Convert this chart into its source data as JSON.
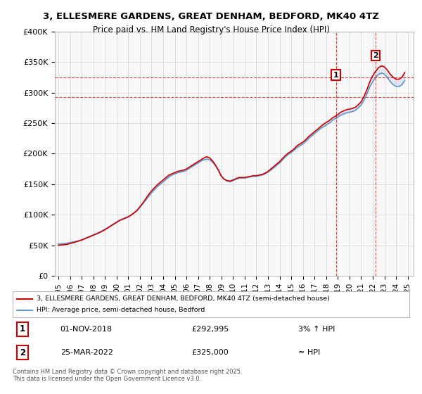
{
  "title": "3, ELLESMERE GARDENS, GREAT DENHAM, BEDFORD, MK40 4TZ",
  "subtitle": "Price paid vs. HM Land Registry's House Price Index (HPI)",
  "ylabel_ticks": [
    "£0",
    "£50K",
    "£100K",
    "£150K",
    "£200K",
    "£250K",
    "£300K",
    "£350K",
    "£400K"
  ],
  "ylim": [
    0,
    400000
  ],
  "xlim_start": 1995,
  "xlim_end": 2025.5,
  "legend_line1": "3, ELLESMERE GARDENS, GREAT DENHAM, BEDFORD, MK40 4TZ (semi-detached house)",
  "legend_line2": "HPI: Average price, semi-detached house, Bedford",
  "annotation1_num": "1",
  "annotation1_date": "01-NOV-2018",
  "annotation1_price": "£292,995",
  "annotation1_hpi": "3% ↑ HPI",
  "annotation2_num": "2",
  "annotation2_date": "25-MAR-2022",
  "annotation2_price": "£325,000",
  "annotation2_hpi": "≈ HPI",
  "footer": "Contains HM Land Registry data © Crown copyright and database right 2025.\nThis data is licensed under the Open Government Licence v3.0.",
  "line_color_red": "#cc0000",
  "line_color_blue": "#6699cc",
  "marker1_x": 2018.83,
  "marker1_y": 292995,
  "marker2_x": 2022.23,
  "marker2_y": 325000,
  "hpi_data_x": [
    1995,
    1995.25,
    1995.5,
    1995.75,
    1996,
    1996.25,
    1996.5,
    1996.75,
    1997,
    1997.25,
    1997.5,
    1997.75,
    1998,
    1998.25,
    1998.5,
    1998.75,
    1999,
    1999.25,
    1999.5,
    1999.75,
    2000,
    2000.25,
    2000.5,
    2000.75,
    2001,
    2001.25,
    2001.5,
    2001.75,
    2002,
    2002.25,
    2002.5,
    2002.75,
    2003,
    2003.25,
    2003.5,
    2003.75,
    2004,
    2004.25,
    2004.5,
    2004.75,
    2005,
    2005.25,
    2005.5,
    2005.75,
    2006,
    2006.25,
    2006.5,
    2006.75,
    2007,
    2007.25,
    2007.5,
    2007.75,
    2008,
    2008.25,
    2008.5,
    2008.75,
    2009,
    2009.25,
    2009.5,
    2009.75,
    2010,
    2010.25,
    2010.5,
    2010.75,
    2011,
    2011.25,
    2011.5,
    2011.75,
    2012,
    2012.25,
    2012.5,
    2012.75,
    2013,
    2013.25,
    2013.5,
    2013.75,
    2014,
    2014.25,
    2014.5,
    2014.75,
    2015,
    2015.25,
    2015.5,
    2015.75,
    2016,
    2016.25,
    2016.5,
    2016.75,
    2017,
    2017.25,
    2017.5,
    2017.75,
    2018,
    2018.25,
    2018.5,
    2018.75,
    2019,
    2019.25,
    2019.5,
    2019.75,
    2020,
    2020.25,
    2020.5,
    2020.75,
    2021,
    2021.25,
    2021.5,
    2021.75,
    2022,
    2022.25,
    2022.5,
    2022.75,
    2023,
    2023.25,
    2023.5,
    2023.75,
    2024,
    2024.25,
    2024.5,
    2024.75
  ],
  "hpi_data_y": [
    52000,
    52500,
    53000,
    53500,
    54500,
    55500,
    56500,
    57500,
    59000,
    61000,
    63000,
    65000,
    67000,
    69000,
    71000,
    73500,
    76000,
    79000,
    82000,
    85000,
    88000,
    91000,
    93000,
    95000,
    97000,
    100000,
    103000,
    107000,
    112000,
    118000,
    124000,
    130000,
    136000,
    141000,
    146000,
    150000,
    154000,
    158000,
    162000,
    165000,
    167000,
    169000,
    170000,
    171000,
    173000,
    176000,
    179000,
    182000,
    185000,
    188000,
    190000,
    191000,
    190000,
    186000,
    180000,
    172000,
    163000,
    158000,
    155000,
    154000,
    156000,
    158000,
    160000,
    160000,
    160000,
    161000,
    162000,
    163000,
    163000,
    164000,
    165000,
    167000,
    170000,
    173000,
    177000,
    181000,
    185000,
    190000,
    195000,
    199000,
    202000,
    206000,
    210000,
    213000,
    216000,
    220000,
    225000,
    229000,
    233000,
    237000,
    241000,
    244000,
    247000,
    250000,
    254000,
    257000,
    260000,
    263000,
    265000,
    267000,
    268000,
    269000,
    271000,
    275000,
    280000,
    288000,
    298000,
    310000,
    318000,
    325000,
    330000,
    332000,
    330000,
    325000,
    318000,
    313000,
    310000,
    310000,
    313000,
    320000
  ],
  "price_data_x": [
    1995,
    1995.25,
    1995.5,
    1995.75,
    1996,
    1996.25,
    1996.5,
    1996.75,
    1997,
    1997.25,
    1997.5,
    1997.75,
    1998,
    1998.25,
    1998.5,
    1998.75,
    1999,
    1999.25,
    1999.5,
    1999.75,
    2000,
    2000.25,
    2000.5,
    2000.75,
    2001,
    2001.25,
    2001.5,
    2001.75,
    2002,
    2002.25,
    2002.5,
    2002.75,
    2003,
    2003.25,
    2003.5,
    2003.75,
    2004,
    2004.25,
    2004.5,
    2004.75,
    2005,
    2005.25,
    2005.5,
    2005.75,
    2006,
    2006.25,
    2006.5,
    2006.75,
    2007,
    2007.25,
    2007.5,
    2007.75,
    2008,
    2008.25,
    2008.5,
    2008.75,
    2009,
    2009.25,
    2009.5,
    2009.75,
    2010,
    2010.25,
    2010.5,
    2010.75,
    2011,
    2011.25,
    2011.5,
    2011.75,
    2012,
    2012.25,
    2012.5,
    2012.75,
    2013,
    2013.25,
    2013.5,
    2013.75,
    2014,
    2014.25,
    2014.5,
    2014.75,
    2015,
    2015.25,
    2015.5,
    2015.75,
    2016,
    2016.25,
    2016.5,
    2016.75,
    2017,
    2017.25,
    2017.5,
    2017.75,
    2018,
    2018.25,
    2018.5,
    2018.75,
    2019,
    2019.25,
    2019.5,
    2019.75,
    2020,
    2020.25,
    2020.5,
    2020.75,
    2021,
    2021.25,
    2021.5,
    2021.75,
    2022,
    2022.25,
    2022.5,
    2022.75,
    2023,
    2023.25,
    2023.5,
    2023.75,
    2024,
    2024.25,
    2024.5,
    2024.75
  ],
  "price_data_y": [
    50000,
    50500,
    51000,
    51500,
    53000,
    54000,
    55500,
    57000,
    58500,
    60500,
    62500,
    64500,
    66500,
    68500,
    70500,
    73000,
    75500,
    78500,
    81500,
    84500,
    87500,
    90500,
    92500,
    94500,
    96500,
    99500,
    103000,
    107000,
    113000,
    119000,
    126000,
    133000,
    139000,
    144000,
    149000,
    153000,
    157000,
    161000,
    165000,
    167000,
    169000,
    171000,
    172000,
    173000,
    175000,
    178000,
    181000,
    184000,
    187000,
    190000,
    193000,
    195000,
    193000,
    188000,
    181000,
    173000,
    163000,
    158000,
    156000,
    155000,
    157000,
    159000,
    161000,
    161000,
    161000,
    162000,
    163000,
    164000,
    164000,
    165000,
    166000,
    168000,
    171000,
    175000,
    179000,
    183000,
    187000,
    192000,
    197000,
    201000,
    204000,
    208000,
    213000,
    216000,
    219000,
    223000,
    228000,
    232000,
    236000,
    240000,
    244000,
    248000,
    251000,
    254000,
    258000,
    261000,
    264000,
    268000,
    270000,
    272000,
    273000,
    274000,
    276000,
    280000,
    285000,
    294000,
    305000,
    318000,
    328000,
    335000,
    341000,
    344000,
    342000,
    337000,
    330000,
    325000,
    322000,
    322000,
    325000,
    333000
  ],
  "bg_color": "#ffffff",
  "grid_color": "#dddddd",
  "plot_bg": "#f8f8f8"
}
